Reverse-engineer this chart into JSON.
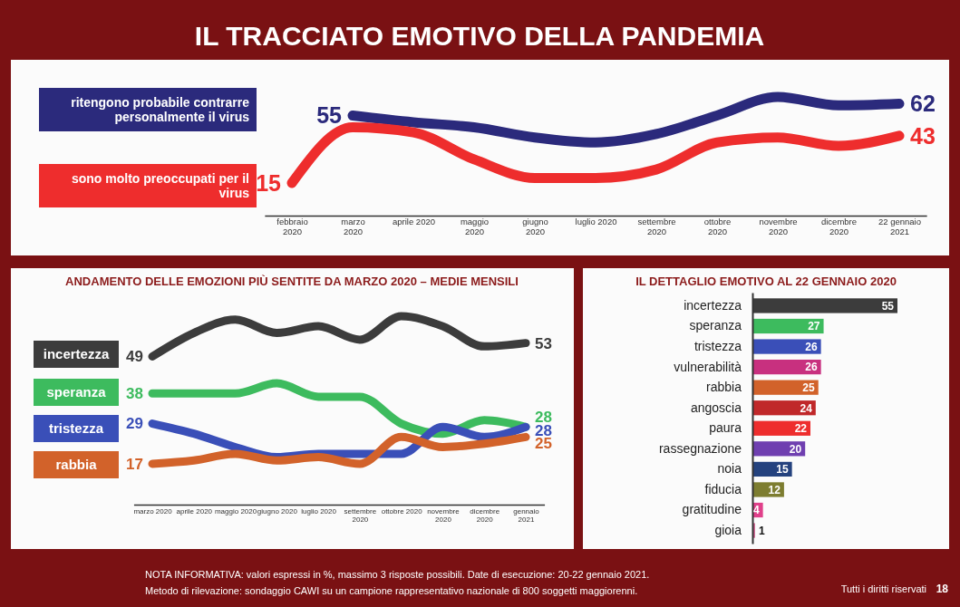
{
  "chart_data": [
    {
      "type": "line",
      "title": "IL TRACCIATO EMOTIVO DELLA PANDEMIA",
      "categories": [
        "febbraio 2020",
        "marzo 2020",
        "aprile 2020",
        "maggio 2020",
        "giugno 2020",
        "luglio 2020",
        "settembre 2020",
        "ottobre 2020",
        "novembre 2020",
        "dicembre 2020",
        "22 gennaio 2021"
      ],
      "tick_labels": "x",
      "legend": "left",
      "series": [
        {
          "name": "ritengono probabile contrarre personalmente il virus",
          "color": "#2b2a7c",
          "values": [
            null,
            55,
            51,
            48,
            42,
            39,
            44,
            55,
            66,
            61,
            62
          ],
          "value_labels": [
            null,
            "55",
            null,
            null,
            null,
            null,
            null,
            null,
            null,
            null,
            "62"
          ]
        },
        {
          "name": "sono molto preoccupati per il virus",
          "color": "#ee2d2d",
          "values": [
            15,
            48,
            45,
            29,
            18,
            18,
            23,
            39,
            42,
            37,
            43
          ],
          "value_labels": [
            "15",
            null,
            null,
            null,
            null,
            null,
            null,
            null,
            null,
            null,
            "43"
          ]
        }
      ]
    },
    {
      "type": "line",
      "title": "ANDAMENTO DELLE EMOZIONI PIÙ SENTITE DA MARZO 2020 – MEDIE MENSILI",
      "categories": [
        "marzo 2020",
        "aprile 2020",
        "maggio 2020",
        "giugno 2020",
        "luglio 2020",
        "settembre 2020",
        "ottobre 2020",
        "novembre 2020",
        "dicembre 2020",
        "gennaio 2021"
      ],
      "tick_labels": "x",
      "legend": "left",
      "series": [
        {
          "name": "incertezza",
          "color": "#3c3c3c",
          "values": [
            49,
            56,
            60,
            56,
            58,
            54,
            61,
            58,
            52,
            53
          ],
          "value_labels": [
            "49",
            null,
            null,
            null,
            null,
            null,
            null,
            null,
            null,
            "53"
          ]
        },
        {
          "name": "speranza",
          "color": "#3dbb5e",
          "values": [
            38,
            38,
            38,
            41,
            37,
            37,
            29,
            26,
            30,
            28
          ],
          "value_labels": [
            "38",
            null,
            null,
            null,
            null,
            null,
            null,
            null,
            null,
            "28"
          ]
        },
        {
          "name": "tristezza",
          "color": "#3a4fb8",
          "values": [
            29,
            26,
            22,
            19,
            20,
            20,
            20,
            28,
            25,
            28
          ],
          "value_labels": [
            "29",
            null,
            null,
            null,
            null,
            null,
            null,
            null,
            null,
            "28"
          ]
        },
        {
          "name": "rabbia",
          "color": "#d2622a",
          "values": [
            17,
            18,
            20,
            18,
            19,
            17,
            25,
            22,
            23,
            25
          ],
          "value_labels": [
            "17",
            null,
            null,
            null,
            null,
            null,
            null,
            null,
            null,
            "25"
          ]
        }
      ]
    },
    {
      "type": "bar",
      "orientation": "horizontal",
      "title": "IL DETTAGLIO EMOTIVO AL 22 GENNAIO 2020",
      "categories": [
        "incertezza",
        "speranza",
        "tristezza",
        "vulnerabilità",
        "rabbia",
        "angoscia",
        "paura",
        "rassegnazione",
        "noia",
        "fiducia",
        "gratitudine",
        "gioia"
      ],
      "values": [
        55,
        27,
        26,
        26,
        25,
        24,
        22,
        20,
        15,
        12,
        4,
        1
      ],
      "colors": [
        "#3c3c3c",
        "#3dbb5e",
        "#3a4fb8",
        "#c8307f",
        "#d2622a",
        "#c0282a",
        "#ee2d2d",
        "#6f3fb0",
        "#24427e",
        "#7d7d30",
        "#e0408a",
        "#d06090"
      ],
      "xlim": [
        0,
        55
      ],
      "tick_labels": "y",
      "data_labels": true,
      "annotations": [
        "NOTA INFORMATIVA: valori espressi in %, massimo 3 risposte possibili. Date di esecuzione: 20-22 gennaio 2021.",
        "Metodo di rilevazione: sondaggio CAWI su un campione rappresentativo nazionale di 800 soggetti maggiorenni.",
        "Tutti i diritti riservati",
        "18"
      ]
    }
  ]
}
